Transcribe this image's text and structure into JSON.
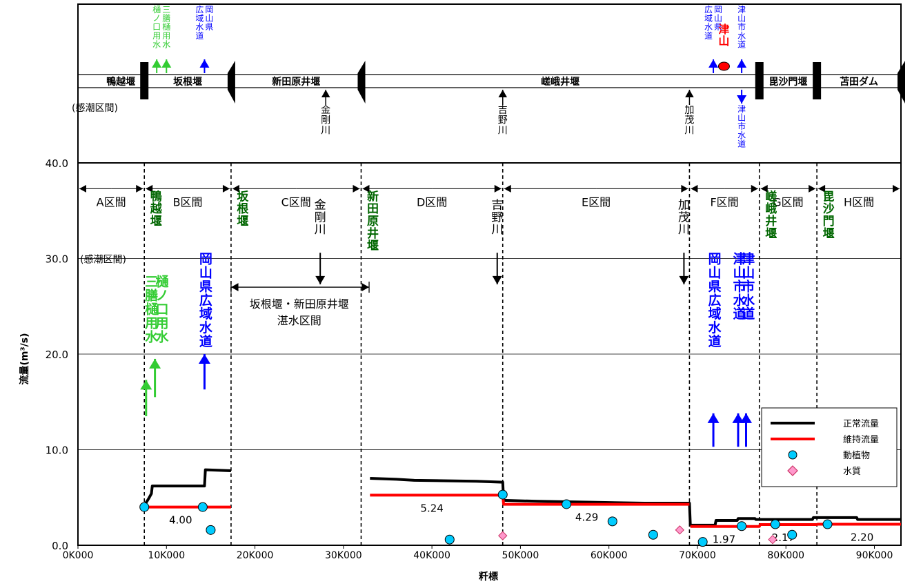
{
  "chart_data": {
    "type": "line",
    "ylabel": "流量(m³/s)",
    "xlabel": "粁標",
    "xlim": [
      0,
      93000
    ],
    "ylim": [
      0,
      40
    ],
    "y_ticks": [
      "0.0",
      "10.0",
      "20.0",
      "30.0",
      "40.0"
    ],
    "y_tick_values": [
      0,
      10,
      20,
      30,
      40
    ],
    "x_ticks": [
      "0K000",
      "10K000",
      "20K000",
      "30K000",
      "40K000",
      "50K000",
      "60K000",
      "70K000",
      "80K000",
      "90K000"
    ],
    "x_tick_values": [
      0,
      10000,
      20000,
      30000,
      40000,
      50000,
      60000,
      70000,
      80000,
      90000
    ],
    "grid": true,
    "legend_position": "bottom-right",
    "legend": [
      {
        "label": "正常流量",
        "kind": "line",
        "color": "#000000"
      },
      {
        "label": "維持流量",
        "kind": "line",
        "color": "#ff0000"
      },
      {
        "label": "動植物",
        "kind": "circle",
        "color": "#00ccff"
      },
      {
        "label": "水質",
        "kind": "diamond",
        "color": "#ff99cc"
      }
    ],
    "boundaries": [
      7500,
      17300,
      32000,
      48000,
      69100,
      77000,
      83500
    ],
    "sections": [
      {
        "label": "A区間",
        "from": 0,
        "to": 7500
      },
      {
        "label": "B区間",
        "from": 7500,
        "to": 17300
      },
      {
        "label": "C区間",
        "from": 17300,
        "to": 32000
      },
      {
        "label": "D区間",
        "from": 32000,
        "to": 48000
      },
      {
        "label": "E区間",
        "from": 48000,
        "to": 69100
      },
      {
        "label": "F区間",
        "from": 69100,
        "to": 77000
      },
      {
        "label": "G区間",
        "from": 77000,
        "to": 83500
      },
      {
        "label": "H区間",
        "from": 83500,
        "to": 93000
      }
    ],
    "series": [
      {
        "name": "正常流量",
        "color": "#000000",
        "segments": [
          [
            [
              7500,
              4.2
            ],
            [
              7800,
              4.6
            ],
            [
              8000,
              4.9
            ],
            [
              8300,
              5.4
            ],
            [
              8400,
              6.2
            ],
            [
              14300,
              6.2
            ],
            [
              14400,
              7.9
            ],
            [
              17300,
              7.8
            ]
          ],
          [
            [
              33000,
              7.0
            ],
            [
              36000,
              6.9
            ],
            [
              38000,
              6.8
            ],
            [
              45000,
              6.7
            ],
            [
              48000,
              6.6
            ],
            [
              48100,
              4.7
            ],
            [
              52000,
              4.6
            ],
            [
              58000,
              4.5
            ],
            [
              64000,
              4.4
            ],
            [
              69100,
              4.4
            ],
            [
              69200,
              2.1
            ],
            [
              72000,
              2.1
            ],
            [
              72100,
              2.6
            ],
            [
              74500,
              2.6
            ],
            [
              74600,
              2.8
            ],
            [
              76500,
              2.8
            ],
            [
              76600,
              2.7
            ],
            [
              83000,
              2.7
            ],
            [
              83100,
              2.9
            ],
            [
              88000,
              2.9
            ],
            [
              88100,
              2.7
            ],
            [
              93000,
              2.7
            ]
          ]
        ]
      },
      {
        "name": "維持流量",
        "color": "#ff0000",
        "segments": [
          [
            [
              7500,
              4.0
            ],
            [
              17300,
              4.0
            ]
          ],
          [
            [
              33000,
              5.24
            ],
            [
              48000,
              5.24
            ],
            [
              48100,
              4.29
            ],
            [
              69100,
              4.29
            ]
          ],
          [
            [
              69200,
              1.97
            ],
            [
              77000,
              1.97
            ],
            [
              77100,
              2.17
            ],
            [
              83500,
              2.17
            ],
            [
              83600,
              2.2
            ],
            [
              93000,
              2.2
            ]
          ]
        ]
      }
    ],
    "maintenance_labels": [
      {
        "text": "4.00",
        "x": 11600,
        "y": 4.0
      },
      {
        "text": "5.24",
        "x": 40000,
        "y": 5.24
      },
      {
        "text": "4.29",
        "x": 57500,
        "y": 4.29
      },
      {
        "text": "1.97",
        "x": 73000,
        "y": 1.97
      },
      {
        "text": "2.17",
        "x": 79700,
        "y": 2.17
      },
      {
        "text": "2.20",
        "x": 88600,
        "y": 2.2
      }
    ],
    "fauna_points": [
      [
        7500,
        4.0
      ],
      [
        14100,
        4.0
      ],
      [
        15000,
        1.6
      ],
      [
        42000,
        0.6
      ],
      [
        48000,
        5.3
      ],
      [
        55200,
        4.3
      ],
      [
        60400,
        2.5
      ],
      [
        65000,
        1.1
      ],
      [
        70600,
        0.35
      ],
      [
        75000,
        2.0
      ],
      [
        78800,
        2.2
      ],
      [
        80700,
        1.1
      ],
      [
        84700,
        2.2
      ]
    ],
    "quality_points": [
      [
        48000,
        1.0
      ],
      [
        68000,
        1.6
      ],
      [
        78500,
        0.6
      ]
    ],
    "top_weirs": [
      {
        "label": "鴨越堰",
        "km": 7500,
        "shape": "rect"
      },
      {
        "label": "坂根堰",
        "km": 17300,
        "shape": "wedge"
      },
      {
        "label": "新田原井堰",
        "km": 32000,
        "shape": "wedge"
      },
      {
        "label": "嵯峨井堰",
        "km": 77000,
        "shape": "rect"
      },
      {
        "label": "毘沙門堰",
        "km": 83500,
        "shape": "rect"
      },
      {
        "label": "苫田ダム",
        "km": 93000,
        "shape": "wedge"
      }
    ],
    "top_tributaries": [
      {
        "label": "金剛川",
        "km": 28000
      },
      {
        "label": "吉野川",
        "km": 48000
      },
      {
        "label": "加茂川",
        "km": 69100
      }
    ],
    "top_intakes": [
      {
        "label": "樋ノ口用水",
        "km": 8900,
        "color": "#33cc33"
      },
      {
        "label": "三膳樋用水",
        "km": 10000,
        "color": "#33cc33"
      },
      {
        "label": "岡山県広域水道",
        "km": 14300,
        "color": "#0000ff"
      },
      {
        "label": "岡山県広域水道",
        "km": 71800,
        "color": "#0000ff"
      },
      {
        "label": "津山市水道",
        "km": 75000,
        "color": "#0000ff"
      }
    ],
    "top_outfall": {
      "label": "津山市水道",
      "km": 75000
    },
    "top_city": "津山",
    "top_tidal_label": "(感潮区間)",
    "chart_annotations": {
      "tidal_label": "(感潮区間)",
      "weir_labels": [
        {
          "label": "鴨越堰",
          "km": 7500
        },
        {
          "label": "坂根堰",
          "km": 17300
        },
        {
          "label": "新田原井堰",
          "km": 32000
        },
        {
          "label": "嵯峨井堰",
          "km": 77000
        },
        {
          "label": "毘沙門堰",
          "km": 83500
        }
      ],
      "tributary_labels": [
        {
          "label": "金剛川",
          "km": 28000
        },
        {
          "label": "吉野川",
          "km": 48000
        },
        {
          "label": "加茂川",
          "km": 69100
        }
      ],
      "intake_labels": [
        {
          "label": "三膳樋用水",
          "km": 8000,
          "color": "#33cc33"
        },
        {
          "label": "樋ノ口用水",
          "km": 9200,
          "color": "#33cc33"
        },
        {
          "label": "岡山県広域水道",
          "km": 14300,
          "color": "#0000ff"
        },
        {
          "label": "岡山県広域水道",
          "km": 71800,
          "color": "#0000ff"
        },
        {
          "label": "津山市水道",
          "km": 74600,
          "color": "#0000ff"
        },
        {
          "label": "津山市水道",
          "km": 75600,
          "color": "#0000ff"
        }
      ],
      "impound_line1": "坂根堰・新田原井堰",
      "impound_line2": "湛水区間",
      "impound_from": 17300,
      "impound_to": 32900
    }
  }
}
